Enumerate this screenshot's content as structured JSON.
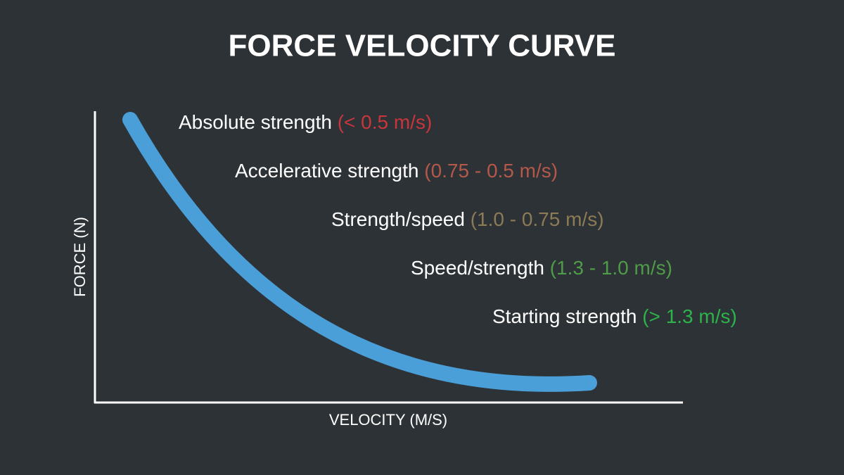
{
  "title": "FORCE VELOCITY CURVE",
  "y_axis_label": "FORCE (N)",
  "x_axis_label": "VELOCITY (M/S)",
  "zones": [
    {
      "name": "Absolute strength",
      "range": "(< 0.5 m/s)",
      "color": "#c8363d"
    },
    {
      "name": "Accelerative strength",
      "range": "(0.75 - 0.5 m/s)",
      "color": "#b4584a"
    },
    {
      "name": "Strength/speed",
      "range": "(1.0 - 0.75 m/s)",
      "color": "#8c7b55"
    },
    {
      "name": "Speed/strength",
      "range": "(1.3 - 1.0 m/s)",
      "color": "#4f9b48"
    },
    {
      "name": "Starting strength",
      "range": "(> 1.3 m/s)",
      "color": "#2db34a"
    }
  ]
}
